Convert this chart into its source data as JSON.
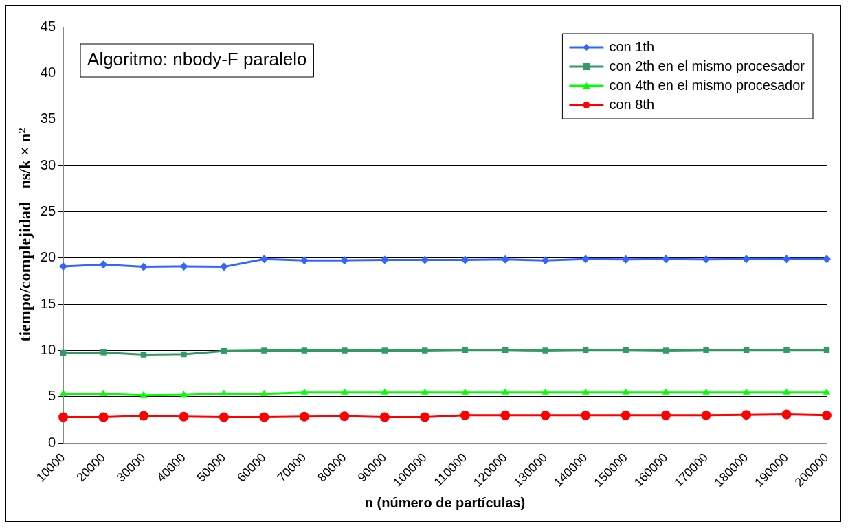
{
  "chart_data": {
    "type": "line",
    "xlabel": "n (número de partículas)",
    "ylabel": "tiempo/complejidad   ns/k × n²",
    "annotations": [
      "Algoritmo: nbody-F paralelo"
    ],
    "categories": [
      "10000",
      "20000",
      "30000",
      "40000",
      "50000",
      "60000",
      "70000",
      "80000",
      "90000",
      "100000",
      "110000",
      "120000",
      "130000",
      "140000",
      "150000",
      "160000",
      "170000",
      "180000",
      "190000",
      "200000"
    ],
    "series": [
      {
        "name": "con 1th",
        "color": "#3366ff",
        "marker": "diamond",
        "values": [
          19.1,
          19.3,
          19.05,
          19.1,
          19.05,
          19.9,
          19.75,
          19.75,
          19.8,
          19.8,
          19.8,
          19.85,
          19.75,
          19.9,
          19.85,
          19.9,
          19.85,
          19.9,
          19.9,
          19.9
        ]
      },
      {
        "name": "con 2th en el mismo procesador",
        "color": "#339966",
        "marker": "square",
        "values": [
          9.75,
          9.8,
          9.55,
          9.6,
          9.95,
          10,
          10,
          10,
          10,
          10,
          10.05,
          10.05,
          10,
          10.05,
          10.05,
          10,
          10.05,
          10.05,
          10.05,
          10.05
        ]
      },
      {
        "name": "con 4th en el mismo procesador",
        "color": "#00ff00",
        "marker": "triangle",
        "values": [
          5.3,
          5.3,
          5.15,
          5.2,
          5.35,
          5.3,
          5.45,
          5.45,
          5.45,
          5.45,
          5.45,
          5.45,
          5.45,
          5.45,
          5.45,
          5.45,
          5.45,
          5.45,
          5.45,
          5.45
        ]
      },
      {
        "name": "con 8th",
        "color": "#ff0000",
        "marker": "circle",
        "values": [
          2.8,
          2.8,
          2.95,
          2.85,
          2.8,
          2.8,
          2.85,
          2.9,
          2.8,
          2.8,
          3.0,
          3.0,
          3.0,
          3.0,
          3.0,
          3.0,
          3.0,
          3.05,
          3.1,
          3.0
        ]
      }
    ],
    "ylim": [
      0,
      45
    ],
    "yticks": [
      0,
      5,
      10,
      15,
      20,
      25,
      30,
      35,
      40,
      45
    ],
    "grid": "y",
    "legend": "top right"
  }
}
